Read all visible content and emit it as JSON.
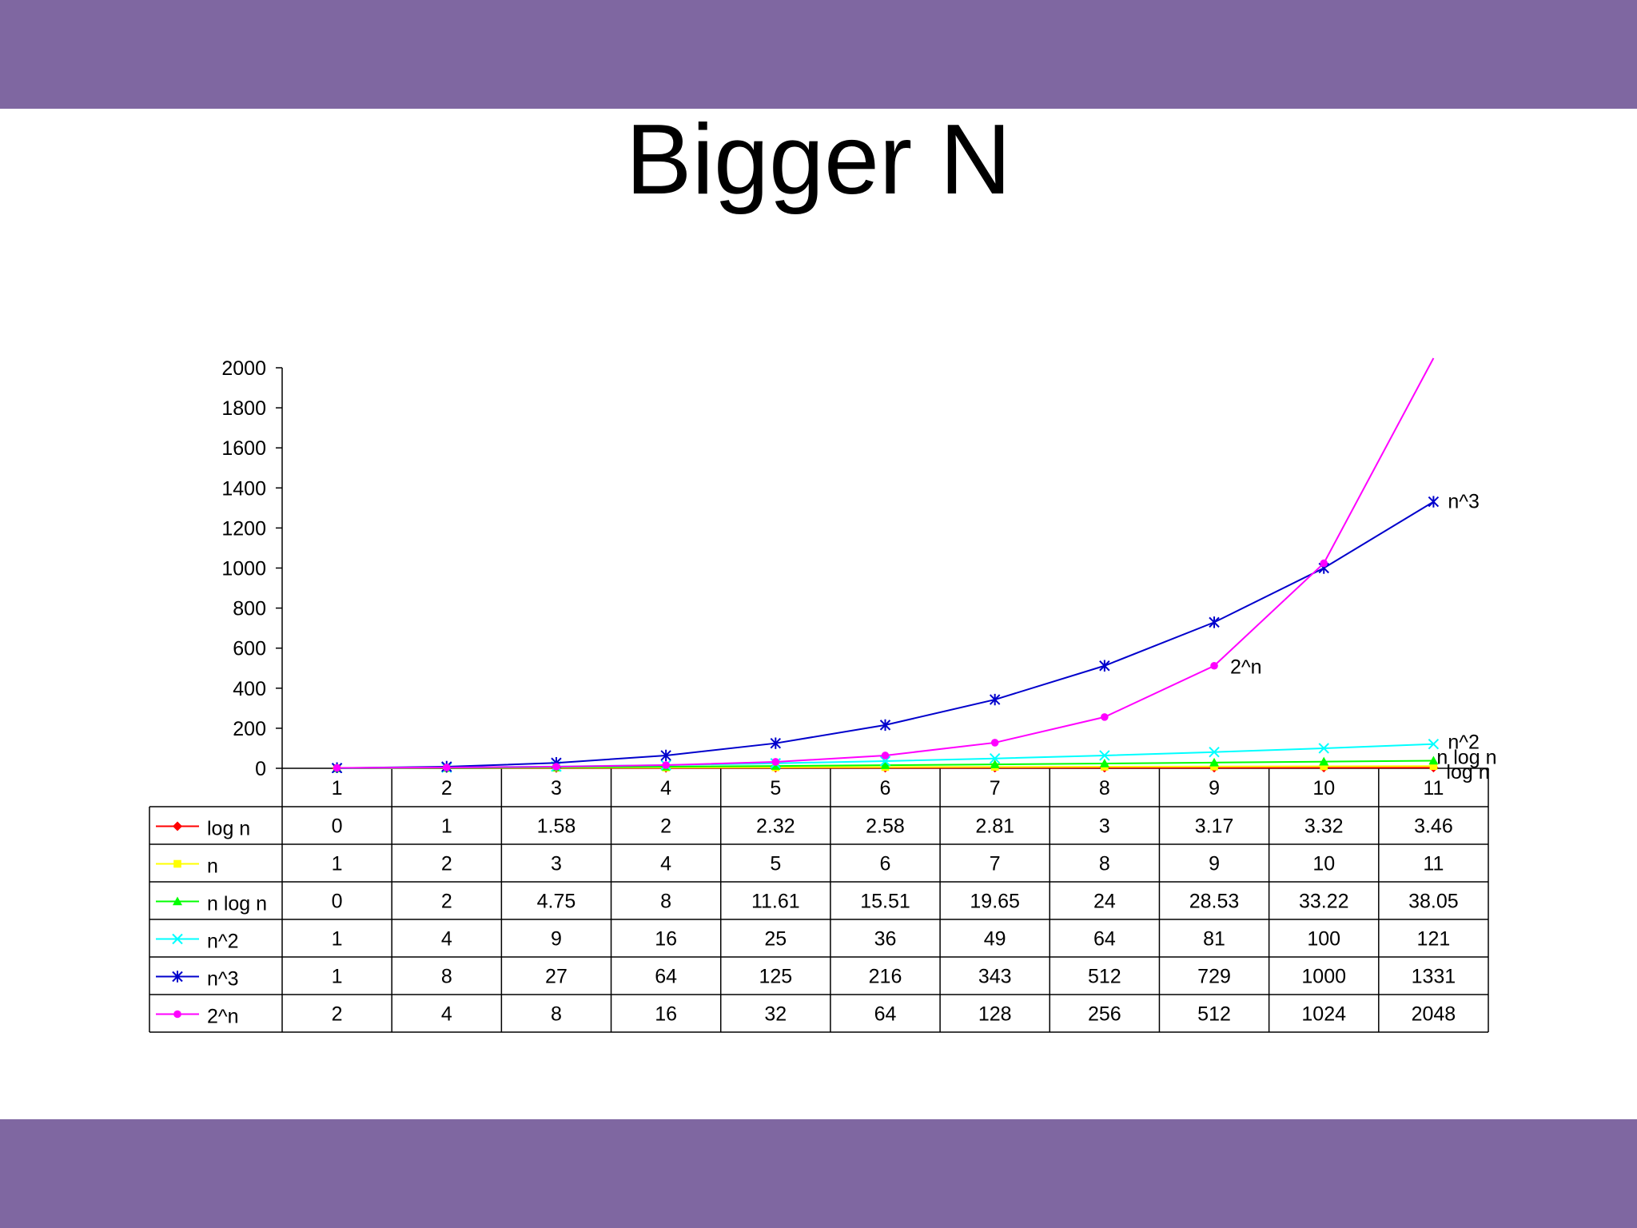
{
  "slide": {
    "title": "Bigger N",
    "band_color": "#7f67a1"
  },
  "chart_data": {
    "type": "line",
    "categories": [
      "1",
      "2",
      "3",
      "4",
      "5",
      "6",
      "7",
      "8",
      "9",
      "10",
      "11"
    ],
    "ylim": [
      0,
      2000
    ],
    "yticks": [
      0,
      200,
      400,
      600,
      800,
      1000,
      1200,
      1400,
      1600,
      1800,
      2000
    ],
    "legend": "data-table",
    "grid": false,
    "series": [
      {
        "name": "log n",
        "color": "#ff0000",
        "marker": "diamond",
        "labels": [
          "0",
          "1",
          "1.58",
          "2",
          "2.32",
          "2.58",
          "2.81",
          "3",
          "3.17",
          "3.32",
          "3.46"
        ],
        "values": [
          0,
          1,
          1.58,
          2,
          2.32,
          2.58,
          2.81,
          3,
          3.17,
          3.32,
          3.46
        ]
      },
      {
        "name": "n",
        "color": "#ffff00",
        "marker": "square",
        "labels": [
          "1",
          "2",
          "3",
          "4",
          "5",
          "6",
          "7",
          "8",
          "9",
          "10",
          "11"
        ],
        "values": [
          1,
          2,
          3,
          4,
          5,
          6,
          7,
          8,
          9,
          10,
          11
        ]
      },
      {
        "name": "n log n",
        "color": "#00ff00",
        "marker": "triangle",
        "labels": [
          "0",
          "2",
          "4.75",
          "8",
          "11.61",
          "15.51",
          "19.65",
          "24",
          "28.53",
          "33.22",
          "38.05"
        ],
        "values": [
          0,
          2,
          4.75,
          8,
          11.61,
          15.51,
          19.65,
          24,
          28.53,
          33.22,
          38.05
        ]
      },
      {
        "name": "n^2",
        "color": "#00ffff",
        "marker": "x",
        "labels": [
          "1",
          "4",
          "9",
          "16",
          "25",
          "36",
          "49",
          "64",
          "81",
          "100",
          "121"
        ],
        "values": [
          1,
          4,
          9,
          16,
          25,
          36,
          49,
          64,
          81,
          100,
          121
        ]
      },
      {
        "name": "n^3",
        "color": "#0000cc",
        "marker": "star",
        "labels": [
          "1",
          "8",
          "27",
          "64",
          "125",
          "216",
          "343",
          "512",
          "729",
          "1000",
          "1331"
        ],
        "values": [
          1,
          8,
          27,
          64,
          125,
          216,
          343,
          512,
          729,
          1000,
          1331
        ]
      },
      {
        "name": "2^n",
        "color": "#ff00ff",
        "marker": "circle",
        "labels": [
          "2",
          "4",
          "8",
          "16",
          "32",
          "64",
          "128",
          "256",
          "512",
          "1024",
          "2048"
        ],
        "values": [
          2,
          4,
          8,
          16,
          32,
          64,
          128,
          256,
          512,
          1024,
          2048
        ]
      }
    ],
    "annotations": [
      {
        "text": "n^3",
        "series": "n^3",
        "point": 11
      },
      {
        "text": "2^n",
        "series": "2^n",
        "point": 9
      },
      {
        "text": "n^2",
        "series": "n^2",
        "point": 11
      },
      {
        "text": "n log n",
        "series": "n log n",
        "point": 11
      },
      {
        "text": "log n",
        "series": "log n",
        "point": 11
      }
    ]
  }
}
